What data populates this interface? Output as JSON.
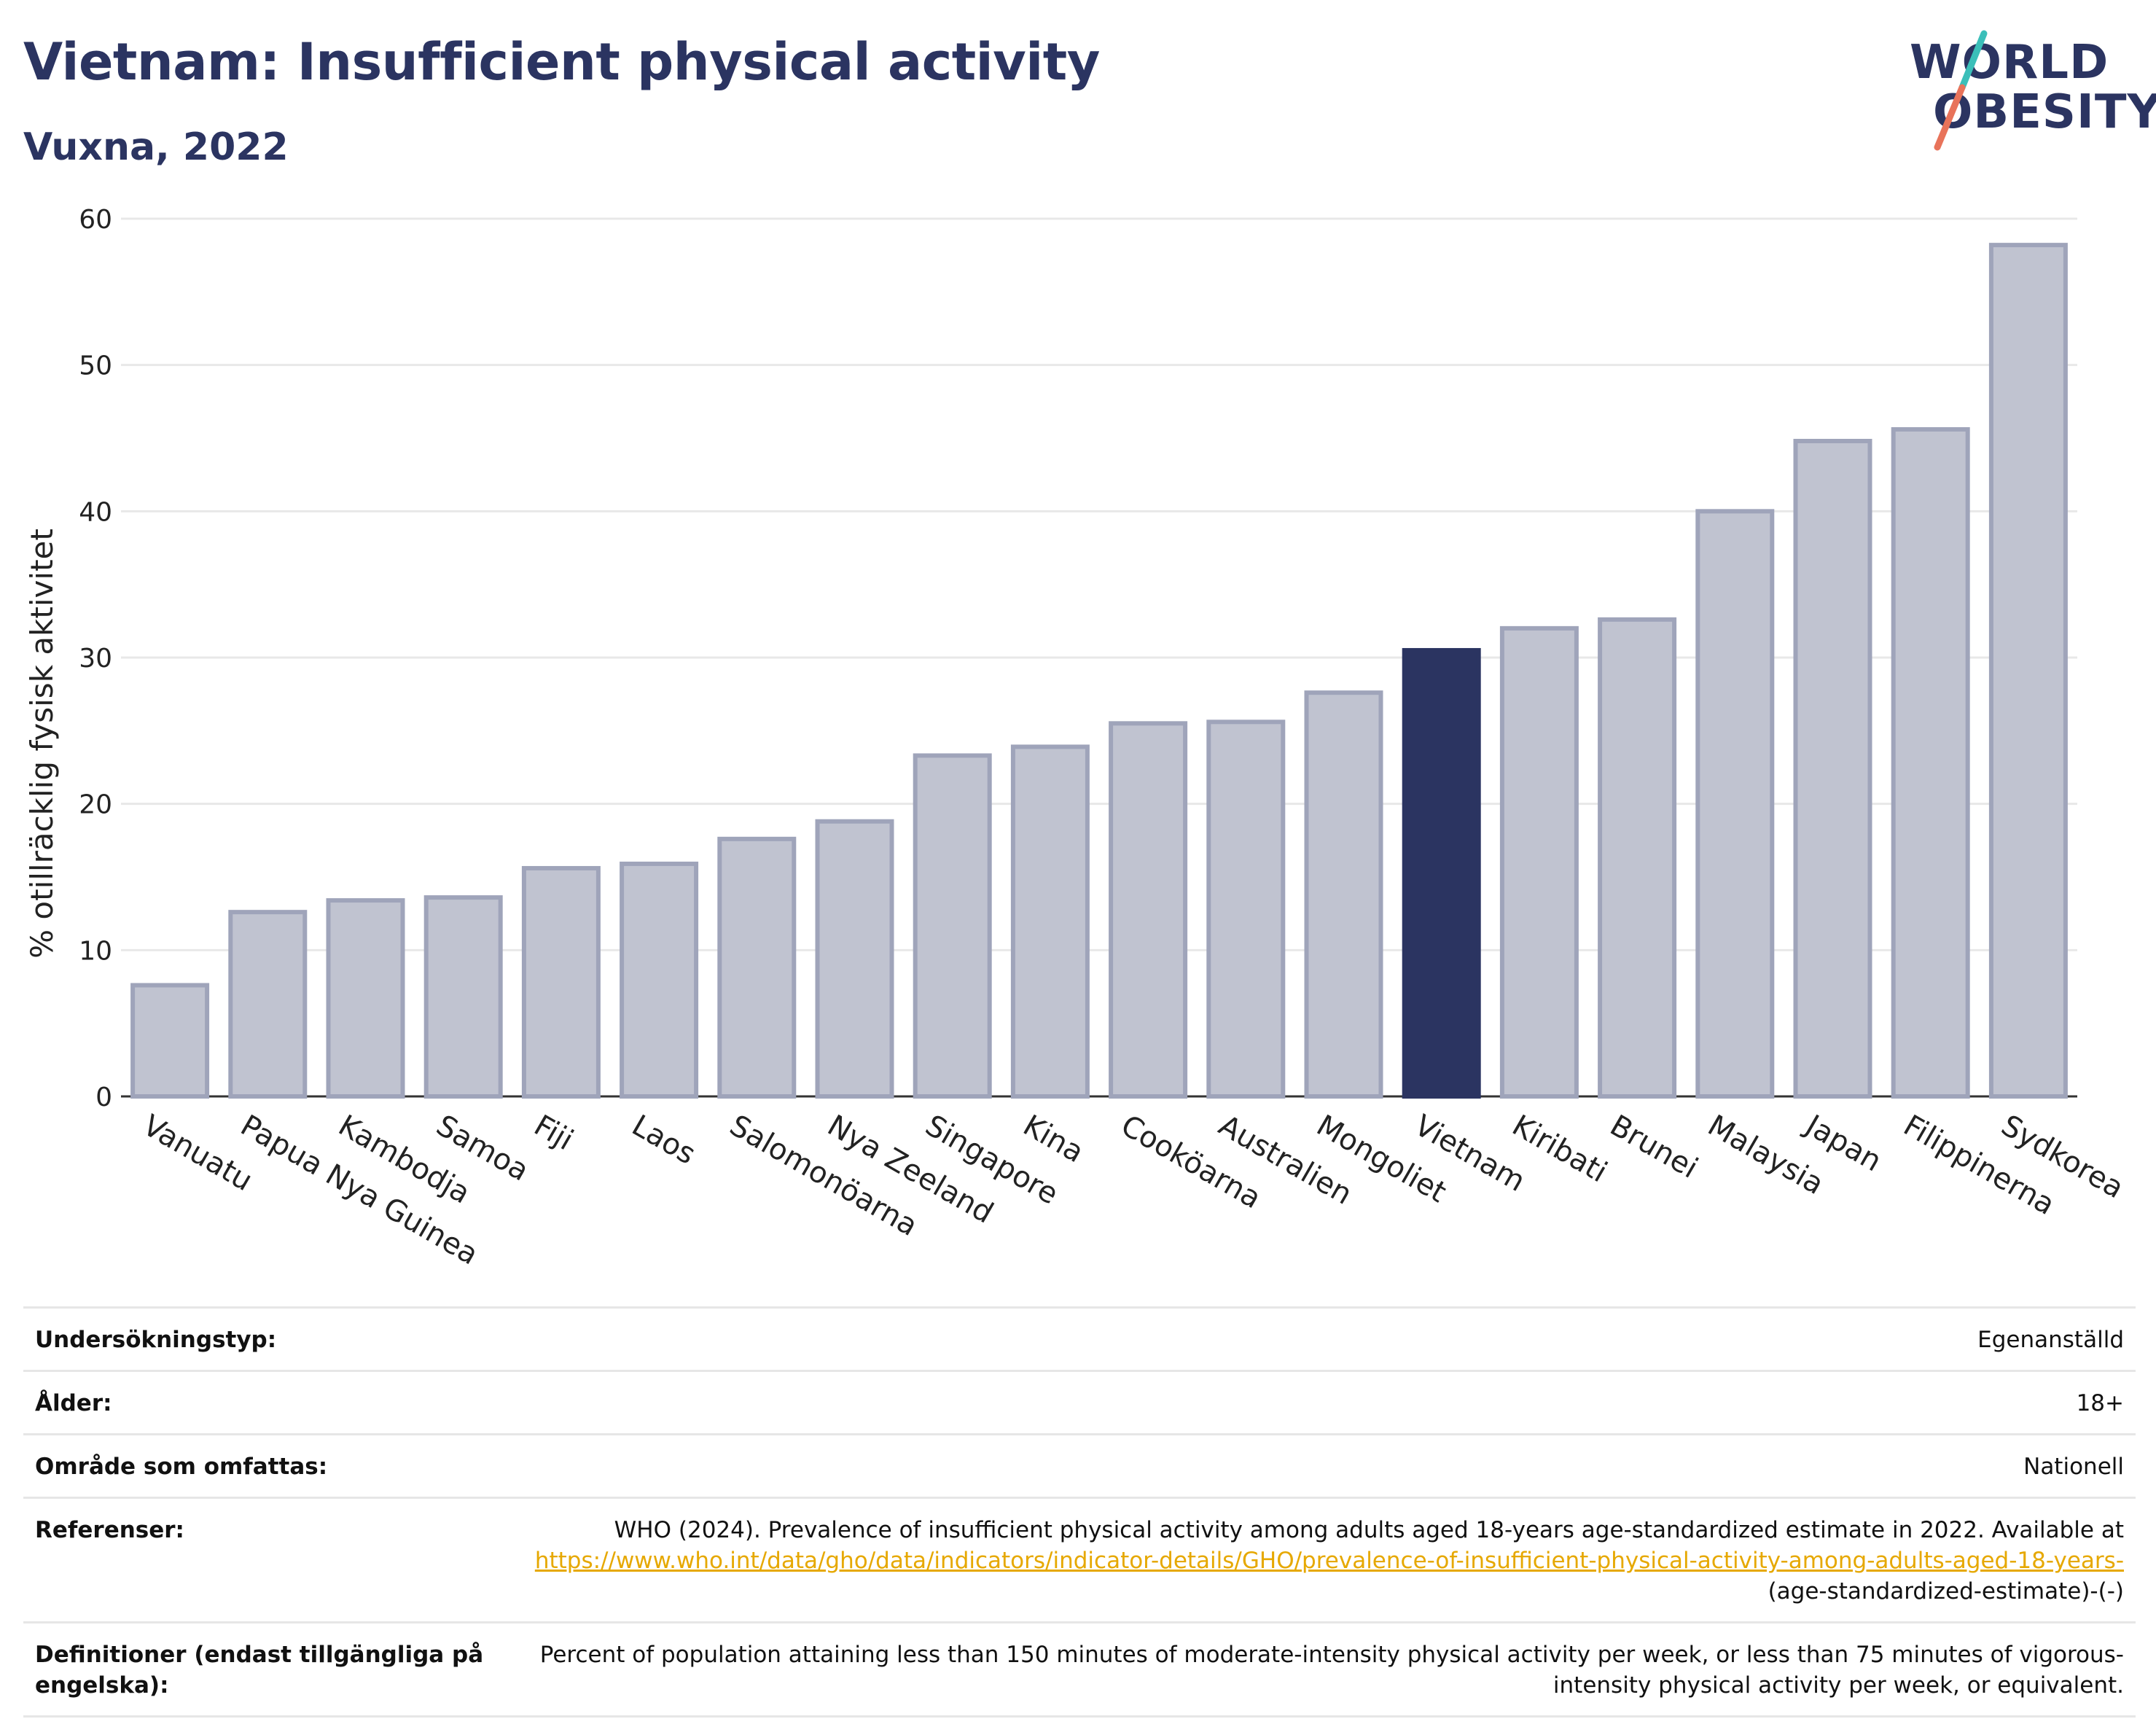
{
  "title": "Vietnam: Insufficient physical activity",
  "subtitle": "Vuxna, 2022",
  "logo": {
    "line1": "WORLD",
    "line2": "OBESITY"
  },
  "colors": {
    "highlight": "#2b3461",
    "bar": "#c0c3d0",
    "bar_border": "#9fa4ba",
    "title": "#2b3461",
    "link": "#e6a800",
    "logo_teal": "#3bbfb9",
    "logo_coral": "#e8735a"
  },
  "chart_data": {
    "type": "bar",
    "title": "Vietnam: Insufficient physical activity",
    "subtitle": "Vuxna, 2022",
    "ylabel": "% otillräcklig fysisk aktivitet",
    "xlabel": "",
    "ylim": [
      0,
      60
    ],
    "yticks": [
      0,
      10,
      20,
      30,
      40,
      50,
      60
    ],
    "grid": true,
    "highlight": "Vietnam",
    "categories": [
      "Vanuatu",
      "Papua Nya Guinea",
      "Kambodja",
      "Samoa",
      "Fiji",
      "Laos",
      "Salomonöarna",
      "Nya Zeeland",
      "Singapore",
      "Kina",
      "Cooköarna",
      "Australien",
      "Mongoliet",
      "Vietnam",
      "Kiribati",
      "Brunei",
      "Malaysia",
      "Japan",
      "Filippinerna",
      "Sydkorea"
    ],
    "values": [
      7.6,
      12.6,
      13.4,
      13.6,
      15.6,
      15.9,
      17.6,
      18.8,
      23.3,
      23.9,
      25.5,
      25.6,
      27.6,
      30.5,
      32.0,
      32.6,
      40.0,
      44.8,
      45.6,
      58.2
    ]
  },
  "info": [
    {
      "label": "Undersökningstyp:",
      "value": "Egenanställd"
    },
    {
      "label": "Ålder:",
      "value": "18+"
    },
    {
      "label": "Område som omfattas:",
      "value": "Nationell"
    },
    {
      "label": "Referenser:",
      "value": "WHO (2024). Prevalence of insufficient physical activity among adults aged 18-years age-standardized estimate in 2022. Available at",
      "link": "https://www.who.int/data/gho/data/indicators/indicator-details/GHO/prevalence-of-insufficient-physical-activity-among-adults-aged-18-years-",
      "suffix": "(age-standardized-estimate)-(-)"
    },
    {
      "label": "Definitioner (endast tillgängliga på engelska):",
      "value": "Percent of population attaining less than 150 minutes of moderate-intensity physical activity per week, or less than 75 minutes of vigorous-intensity physical activity per week, or equivalent."
    }
  ]
}
